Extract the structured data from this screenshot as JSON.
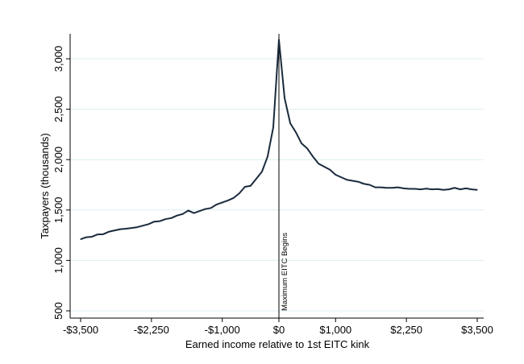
{
  "chart_data": {
    "type": "line",
    "title": "",
    "xlabel": "Earned income relative to 1st EITC kink",
    "ylabel": "Taxpayers (thousands)",
    "xlim": [
      -3500,
      3500
    ],
    "ylim": [
      500,
      3150
    ],
    "grid": true,
    "x_ticks": [
      -3500,
      -2250,
      -1000,
      0,
      1000,
      2250,
      3500
    ],
    "x_tick_labels": [
      "-$3,500",
      "-$2,250",
      "-$1,000",
      "$0",
      "$1,000",
      "$2,250",
      "$3,500"
    ],
    "y_ticks": [
      500,
      1000,
      1500,
      2000,
      2500,
      3000
    ],
    "y_tick_labels": [
      "500",
      "1,000",
      "1,500",
      "2,000",
      "2,500",
      "3,000"
    ],
    "annotation": {
      "x": 0,
      "label": "Maximum EITC Begins"
    },
    "colors": {
      "line": "#1a2a3c",
      "grid": "#dceef0",
      "axis": "#000000",
      "vline": "#000000"
    },
    "series": [
      {
        "x": [
          -3500,
          -3400,
          -3300,
          -3200,
          -3100,
          -3000,
          -2900,
          -2800,
          -2700,
          -2600,
          -2500,
          -2400,
          -2300,
          -2200,
          -2100,
          -2000,
          -1900,
          -1800,
          -1700,
          -1600,
          -1500,
          -1400,
          -1300,
          -1200,
          -1100,
          -1000,
          -900,
          -800,
          -700,
          -600,
          -500,
          -400,
          -300,
          -200,
          -100,
          0,
          100,
          200,
          300,
          400,
          500,
          600,
          700,
          800,
          900,
          1000,
          1100,
          1200,
          1300,
          1400,
          1500,
          1600,
          1700,
          1800,
          1900,
          2000,
          2100,
          2200,
          2300,
          2400,
          2500,
          2600,
          2700,
          2800,
          2900,
          3000,
          3100,
          3200,
          3300,
          3400,
          3500
        ],
        "values": [
          1210,
          1230,
          1235,
          1258,
          1260,
          1285,
          1298,
          1310,
          1315,
          1322,
          1330,
          1345,
          1360,
          1385,
          1390,
          1410,
          1420,
          1445,
          1460,
          1495,
          1470,
          1490,
          1510,
          1520,
          1555,
          1575,
          1595,
          1620,
          1665,
          1730,
          1740,
          1810,
          1880,
          2030,
          2320,
          3190,
          2610,
          2360,
          2270,
          2160,
          2110,
          2030,
          1960,
          1930,
          1900,
          1850,
          1825,
          1800,
          1790,
          1780,
          1760,
          1750,
          1725,
          1725,
          1720,
          1720,
          1725,
          1715,
          1710,
          1710,
          1705,
          1712,
          1705,
          1708,
          1700,
          1705,
          1720,
          1705,
          1715,
          1705,
          1700
        ]
      }
    ]
  }
}
